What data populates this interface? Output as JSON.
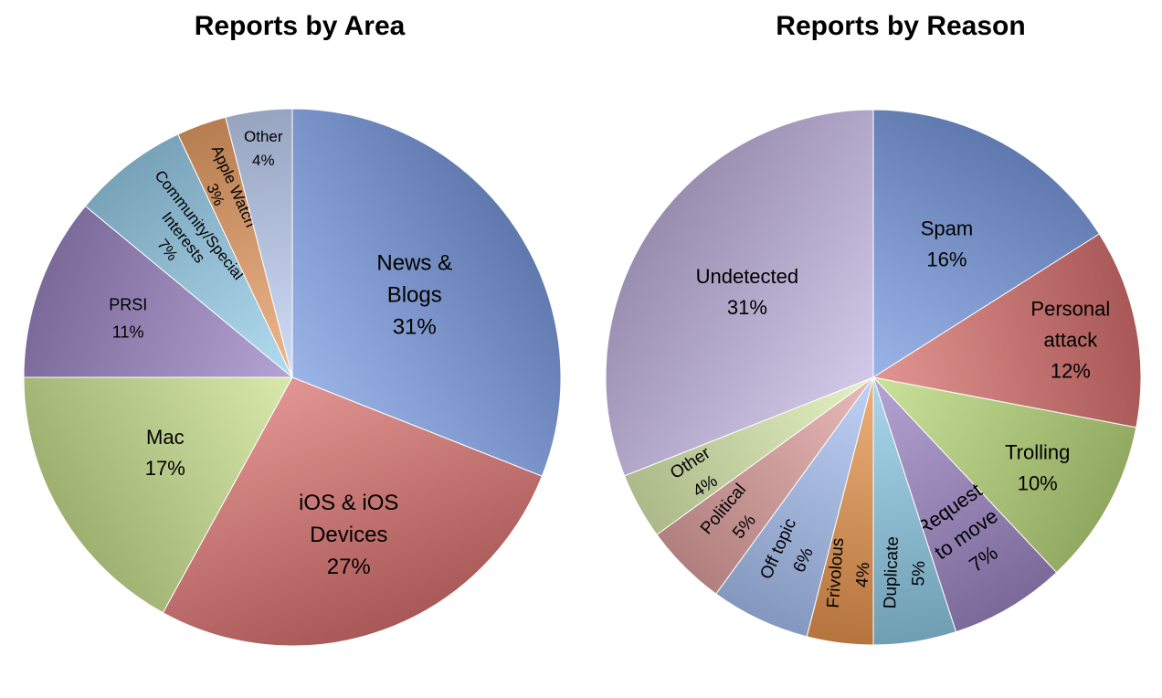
{
  "chart_data": [
    {
      "type": "pie",
      "title": "Reports by Area",
      "slices": [
        {
          "label": [
            "News &",
            "Blogs",
            "31%"
          ],
          "name": "News & Blogs",
          "value": 31,
          "color": "#7a9be0"
        },
        {
          "label": [
            "iOS & iOS",
            "Devices",
            "27%"
          ],
          "name": "iOS & iOS Devices",
          "value": 27,
          "color": "#d8716e"
        },
        {
          "label": [
            "Mac",
            "17%"
          ],
          "name": "Mac",
          "value": 17,
          "color": "#cbe28f"
        },
        {
          "label": [
            "PRSI",
            "11%"
          ],
          "name": "PRSI",
          "value": 11,
          "color": "#9c86c4"
        },
        {
          "label": [
            "Community/Special",
            "Interests",
            "7%"
          ],
          "name": "Community/Special Interests",
          "value": 7,
          "color": "#99d0ec"
        },
        {
          "label": [
            "Apple Watch",
            "3%"
          ],
          "name": "Apple Watch",
          "value": 3,
          "color": "#e9a066"
        },
        {
          "label": [
            "Other",
            "4%"
          ],
          "name": "Other",
          "value": 4,
          "color": "#c2d2f5"
        }
      ]
    },
    {
      "type": "pie",
      "title": "Reports by Reason",
      "slices": [
        {
          "label": [
            "Spam",
            "16%"
          ],
          "name": "Spam",
          "value": 16,
          "color": "#7a9be0"
        },
        {
          "label": [
            "Personal",
            "attack",
            "12%"
          ],
          "name": "Personal attack",
          "value": 12,
          "color": "#d8716e"
        },
        {
          "label": [
            "Trolling",
            "10%"
          ],
          "name": "Trolling",
          "value": 10,
          "color": "#b8d87a"
        },
        {
          "label": [
            "Request",
            "to move",
            "7%"
          ],
          "name": "Request to move",
          "value": 7,
          "color": "#9c86c4"
        },
        {
          "label": [
            "Duplicate",
            "5%"
          ],
          "name": "Duplicate",
          "value": 5,
          "color": "#8ecae6"
        },
        {
          "label": [
            "Frivolous",
            "4%"
          ],
          "name": "Frivolous",
          "value": 4,
          "color": "#e8954f"
        },
        {
          "label": [
            "Off topic",
            "6%"
          ],
          "name": "Off topic",
          "value": 6,
          "color": "#a9c1f2"
        },
        {
          "label": [
            "Political",
            "5%"
          ],
          "name": "Political",
          "value": 5,
          "color": "#e2a3a1"
        },
        {
          "label": [
            "Other",
            "4%"
          ],
          "name": "Other",
          "value": 4,
          "color": "#dcedb0"
        },
        {
          "label": [
            "Undetected",
            "31%"
          ],
          "name": "Undetected",
          "value": 31,
          "color": "#c3b5e0"
        }
      ]
    }
  ]
}
